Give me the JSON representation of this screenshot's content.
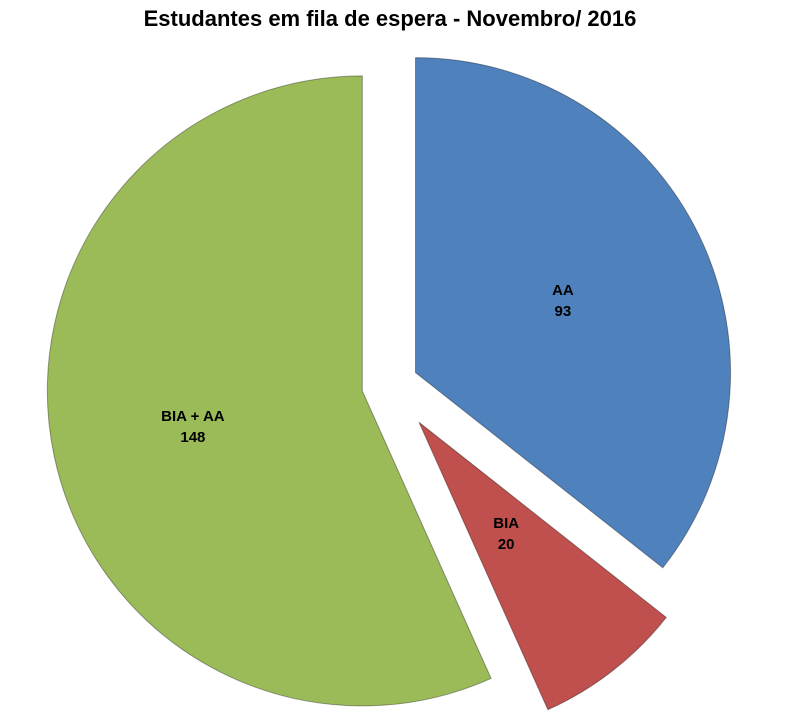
{
  "chart_data": {
    "type": "pie",
    "title": "Estudantes em fila de espera -  Novembro/ 2016",
    "categories": [
      "AA",
      "BIA",
      "BIA + AA"
    ],
    "values": [
      93,
      20,
      148
    ],
    "colors": [
      "#4F81BD",
      "#C0504D",
      "#9BBB59"
    ],
    "border_color": "#000000",
    "text_color": "#000000",
    "background": "#FFFFFF",
    "start_angle_deg": 0,
    "direction": "clockwise",
    "exploded": true,
    "explode_fraction": [
      0.09,
      0.15,
      0.09
    ],
    "label_radius_fraction": [
      0.52,
      0.45,
      0.55
    ],
    "labels_show": "category_and_value",
    "legend": "none"
  }
}
